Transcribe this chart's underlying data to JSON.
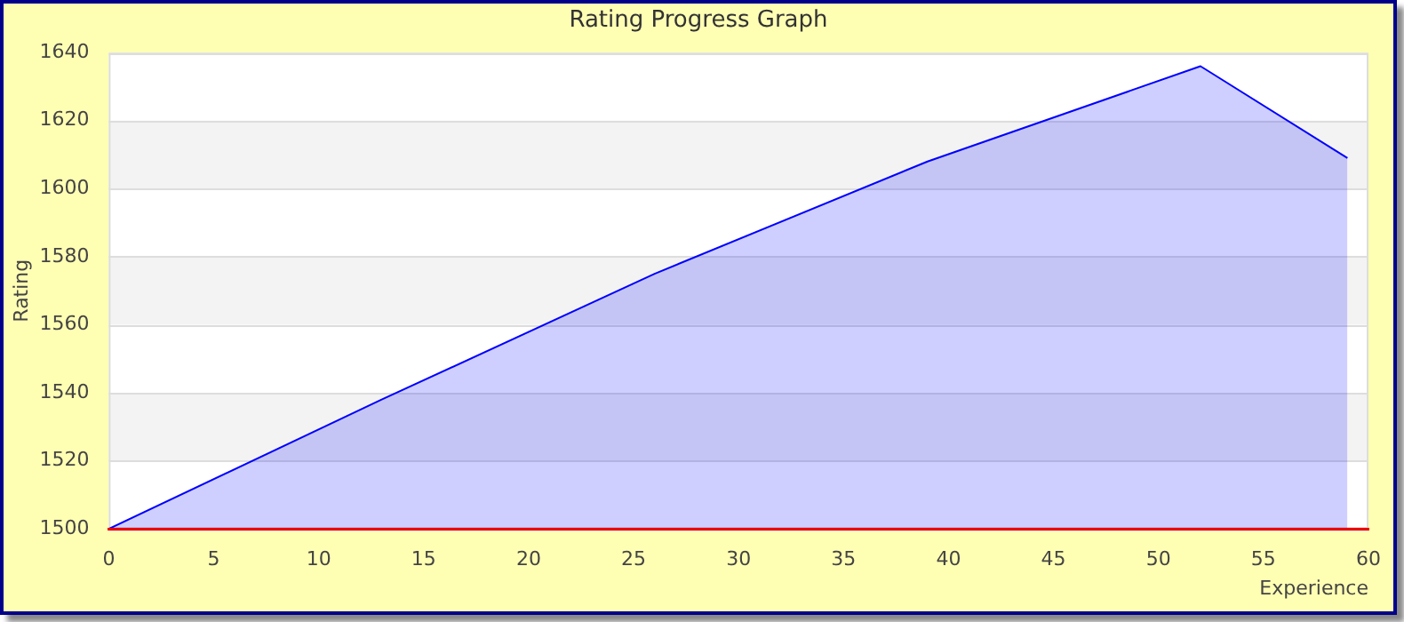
{
  "chart_data": {
    "type": "area",
    "title": "Rating Progress Graph",
    "xlabel": "Experience",
    "ylabel": "Rating",
    "x": [
      0,
      13,
      26,
      39,
      52,
      59
    ],
    "series": [
      {
        "color": "#0000ff",
        "values": [
          1500,
          1538,
          1575,
          1608,
          1636,
          1609
        ]
      }
    ],
    "xlim": [
      0,
      60
    ],
    "xticks": [
      0,
      5,
      10,
      15,
      20,
      25,
      30,
      35,
      40,
      45,
      50,
      55,
      60
    ],
    "ylim": [
      1500,
      1640
    ],
    "yticks": [
      1500,
      1520,
      1540,
      1560,
      1580,
      1600,
      1620,
      1640
    ],
    "grid": "y",
    "legend": false,
    "marker": "none"
  }
}
